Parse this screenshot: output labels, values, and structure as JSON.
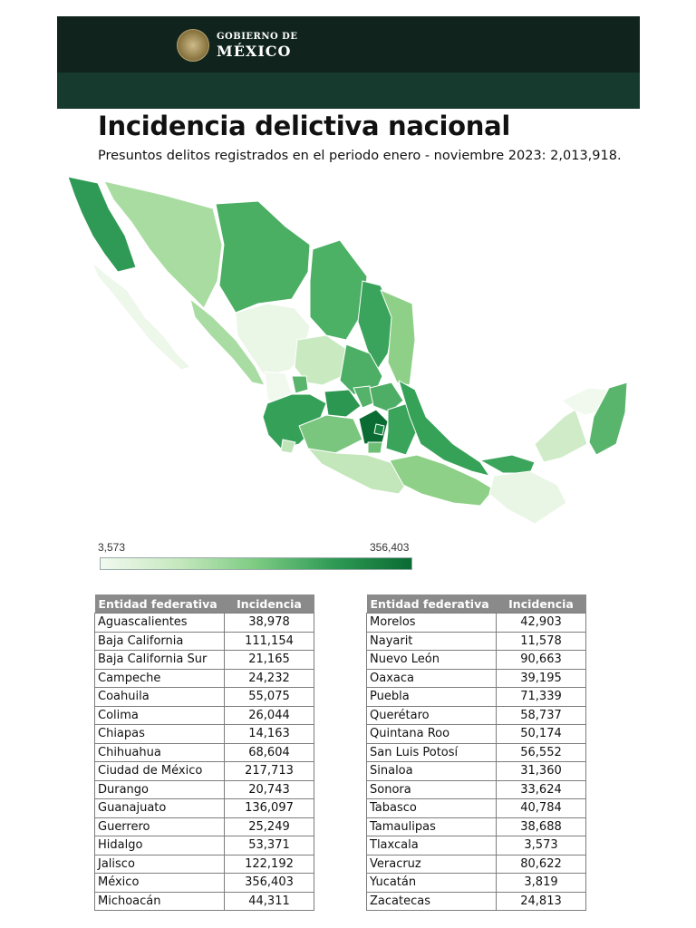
{
  "header": {
    "logo_line1": "GOBIERNO DE",
    "logo_line2": "MÉXICO"
  },
  "title": "Incidencia delictiva nacional",
  "subtitle": "Presuntos delitos registrados en el periodo enero - noviembre 2023: 2,013,918.",
  "legend": {
    "min": "3,573",
    "max": "356,403"
  },
  "colors": {
    "banner": "#10231c",
    "banner_band": "#163a2d",
    "table_header": "#8a8a8a",
    "scale_low": "#f1f9ef",
    "scale_high": "#0a6b33"
  },
  "table_headers": {
    "state": "Entidad federativa",
    "value": "Incidencia"
  },
  "tables": [
    [
      {
        "state": "Aguascalientes",
        "value": "38,978"
      },
      {
        "state": "Baja California",
        "value": "111,154"
      },
      {
        "state": "Baja California Sur",
        "value": "21,165"
      },
      {
        "state": "Campeche",
        "value": "24,232"
      },
      {
        "state": "Coahuila",
        "value": "55,075"
      },
      {
        "state": "Colima",
        "value": "26,044"
      },
      {
        "state": "Chiapas",
        "value": "14,163"
      },
      {
        "state": "Chihuahua",
        "value": "68,604"
      },
      {
        "state": "Ciudad de México",
        "value": "217,713"
      },
      {
        "state": "Durango",
        "value": "20,743"
      },
      {
        "state": "Guanajuato",
        "value": "136,097"
      },
      {
        "state": "Guerrero",
        "value": "25,249"
      },
      {
        "state": "Hidalgo",
        "value": "53,371"
      },
      {
        "state": "Jalisco",
        "value": "122,192"
      },
      {
        "state": "México",
        "value": "356,403"
      },
      {
        "state": "Michoacán",
        "value": "44,311"
      }
    ],
    [
      {
        "state": "Morelos",
        "value": "42,903"
      },
      {
        "state": "Nayarit",
        "value": "11,578"
      },
      {
        "state": "Nuevo León",
        "value": "90,663"
      },
      {
        "state": "Oaxaca",
        "value": "39,195"
      },
      {
        "state": "Puebla",
        "value": "71,339"
      },
      {
        "state": "Querétaro",
        "value": "58,737"
      },
      {
        "state": "Quintana Roo",
        "value": "50,174"
      },
      {
        "state": "San Luis Potosí",
        "value": "56,552"
      },
      {
        "state": "Sinaloa",
        "value": "31,360"
      },
      {
        "state": "Sonora",
        "value": "33,624"
      },
      {
        "state": "Tabasco",
        "value": "40,784"
      },
      {
        "state": "Tamaulipas",
        "value": "38,688"
      },
      {
        "state": "Tlaxcala",
        "value": "3,573"
      },
      {
        "state": "Veracruz",
        "value": "80,622"
      },
      {
        "state": "Yucatán",
        "value": "3,819"
      },
      {
        "state": "Zacatecas",
        "value": "24,813"
      }
    ]
  ]
}
